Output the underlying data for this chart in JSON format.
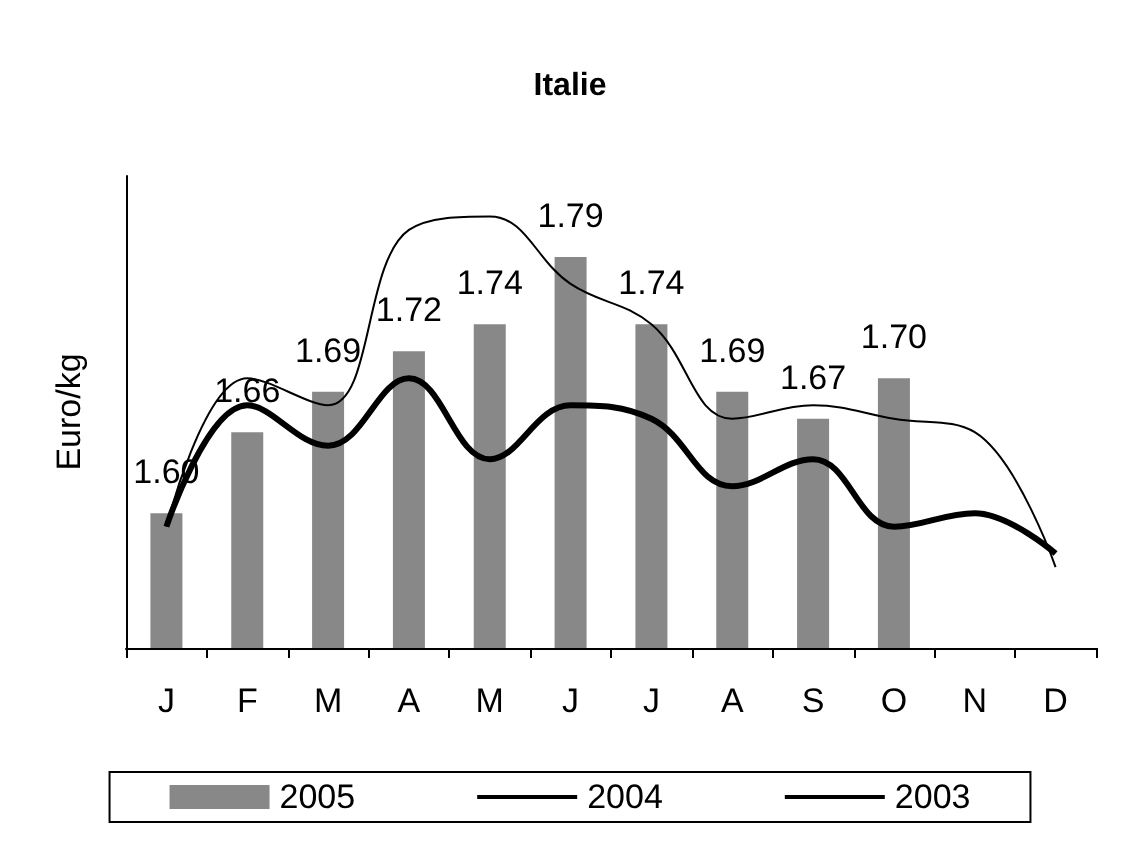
{
  "chart_data": {
    "type": "bar",
    "title": "Italie",
    "ylabel": "Euro/kg",
    "categories": [
      "J",
      "F",
      "M",
      "A",
      "M",
      "J",
      "J",
      "A",
      "S",
      "O",
      "N",
      "D"
    ],
    "ylim": [
      1.5,
      1.85
    ],
    "grid": false,
    "legend": "bottom",
    "series": [
      {
        "name": "2005",
        "color": "#888888",
        "values": [
          1.6,
          1.66,
          1.69,
          1.72,
          1.74,
          1.79,
          1.74,
          1.69,
          1.67,
          1.7,
          null,
          null
        ],
        "value_labels": [
          "1.60",
          "1.66",
          "1.69",
          "1.72",
          "1.74",
          "1.79",
          "1.74",
          "1.69",
          "1.67",
          "1.70",
          null,
          null
        ]
      },
      {
        "name": "2004",
        "type": "line",
        "color": "#000000",
        "values": [
          1.59,
          1.68,
          1.65,
          1.7,
          1.64,
          1.68,
          1.67,
          1.62,
          1.64,
          1.59,
          1.6,
          1.57
        ]
      },
      {
        "name": "2003",
        "type": "line",
        "color": "#000000",
        "values": [
          1.59,
          1.7,
          1.68,
          1.81,
          1.82,
          1.77,
          1.74,
          1.67,
          1.68,
          1.67,
          1.66,
          1.56
        ]
      }
    ]
  }
}
